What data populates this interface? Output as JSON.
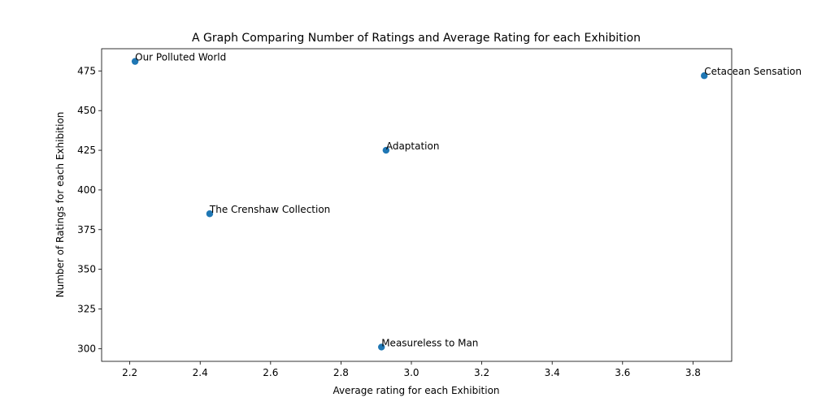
{
  "chart_data": {
    "type": "scatter",
    "title": "A Graph Comparing Number of Ratings and Average Rating for each Exhibition",
    "xlabel": "Average rating for each Exhibition",
    "ylabel": "Number of Ratings for each Exhibition",
    "xlim": [
      2.12,
      3.91
    ],
    "ylim": [
      292,
      489
    ],
    "xticks": [
      2.2,
      2.4,
      2.6,
      2.8,
      3.0,
      3.2,
      3.4,
      3.6,
      3.8
    ],
    "xtick_labels": [
      "2.2",
      "2.4",
      "2.6",
      "2.8",
      "3.0",
      "3.2",
      "3.4",
      "3.6",
      "3.8"
    ],
    "yticks": [
      300,
      325,
      350,
      375,
      400,
      425,
      450,
      475
    ],
    "ytick_labels": [
      "300",
      "325",
      "350",
      "375",
      "400",
      "425",
      "450",
      "475"
    ],
    "grid": false,
    "marker_color": "#1f77b4",
    "points": [
      {
        "label": "Our Polluted World",
        "x": 2.215,
        "y": 481
      },
      {
        "label": "Cetacean Sensation",
        "x": 3.832,
        "y": 472
      },
      {
        "label": "Adaptation",
        "x": 2.928,
        "y": 425
      },
      {
        "label": "The Crenshaw Collection",
        "x": 2.427,
        "y": 385
      },
      {
        "label": "Measureless to Man",
        "x": 2.915,
        "y": 301
      }
    ]
  }
}
